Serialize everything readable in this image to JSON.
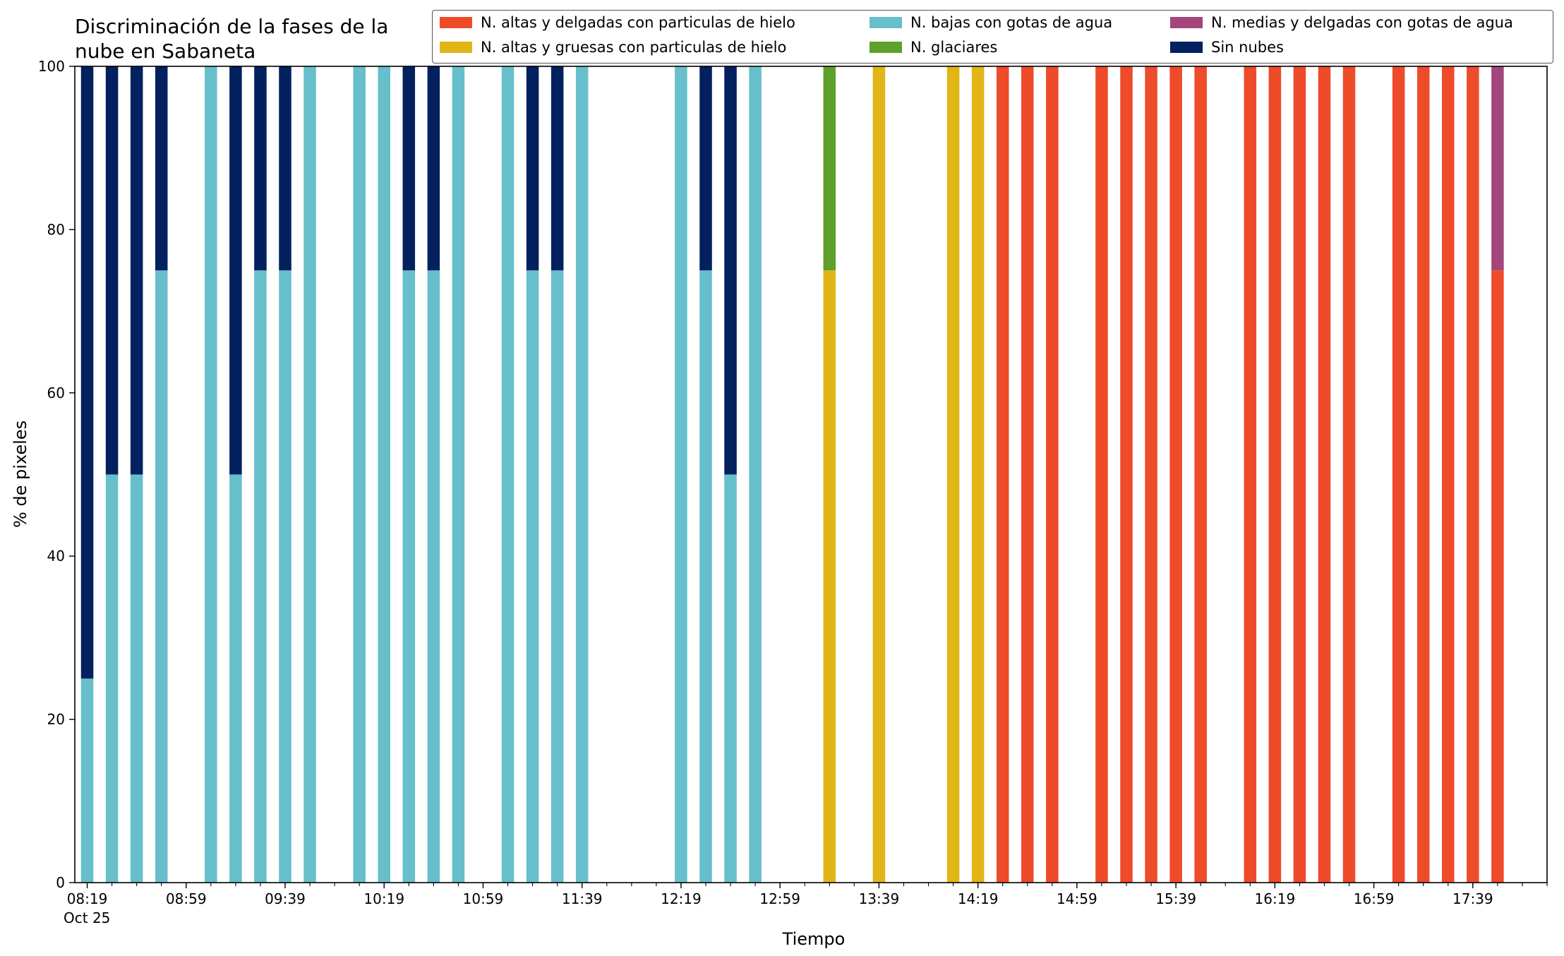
{
  "chart_data": {
    "type": "bar",
    "stacked": true,
    "title": "Discriminación de la fases de la nube en Sabaneta",
    "title_lines": [
      "Discriminación de la fases de la",
      "nube en Sabaneta"
    ],
    "xlabel": "Tiempo",
    "ylabel": "% de pixeles",
    "ylim": [
      0,
      100
    ],
    "yticks": [
      0,
      20,
      40,
      60,
      80,
      100
    ],
    "xlim": [
      "08:14",
      "18:09"
    ],
    "xtick_values": [
      "08:19",
      "08:59",
      "09:39",
      "10:19",
      "10:59",
      "11:39",
      "12:19",
      "12:59",
      "13:39",
      "14:19",
      "14:59",
      "15:39",
      "16:19",
      "16:59",
      "17:39"
    ],
    "xtick_labels": [
      "08:19",
      "08:59",
      "09:39",
      "10:19",
      "10:59",
      "11:39",
      "12:19",
      "12:59",
      "13:39",
      "14:19",
      "14:59",
      "15:39",
      "16:19",
      "16:59",
      "17:39"
    ],
    "x_date_label": "Oct 25",
    "minor_tick_interval_minutes": 10,
    "bar_width_minutes": 5,
    "grid": false,
    "legend_position": "top-right",
    "legend_columns": 3,
    "series": [
      {
        "key": "altas_delgadas",
        "name": "N. altas y delgadas con particulas de hielo",
        "color": "#ee4b2b"
      },
      {
        "key": "altas_gruesas",
        "name": "N. altas y gruesas con particulas de hielo",
        "color": "#e1b516"
      },
      {
        "key": "bajas",
        "name": "N. bajas con gotas de agua",
        "color": "#67bfcb"
      },
      {
        "key": "glaciares",
        "name": "N. glaciares",
        "color": "#5ea02c"
      },
      {
        "key": "medias",
        "name": "N. medias y delgadas con gotas de agua",
        "color": "#a3467c"
      },
      {
        "key": "sin_nubes",
        "name": "Sin nubes",
        "color": "#03205f"
      }
    ],
    "stack_order": [
      "altas_delgadas",
      "altas_gruesas",
      "bajas",
      "glaciares",
      "medias",
      "sin_nubes"
    ],
    "x": [
      "08:19",
      "08:29",
      "08:39",
      "08:49",
      "09:09",
      "09:19",
      "09:29",
      "09:39",
      "09:49",
      "10:09",
      "10:19",
      "10:29",
      "10:39",
      "10:49",
      "11:09",
      "11:19",
      "11:29",
      "11:39",
      "12:19",
      "12:29",
      "12:39",
      "12:49",
      "13:19",
      "13:39",
      "14:09",
      "14:19",
      "14:29",
      "14:39",
      "14:49",
      "15:09",
      "15:19",
      "15:29",
      "15:39",
      "15:49",
      "16:09",
      "16:19",
      "16:29",
      "16:39",
      "16:49",
      "17:09",
      "17:19",
      "17:29",
      "17:39",
      "17:49"
    ],
    "values": {
      "altas_delgadas": [
        0,
        0,
        0,
        0,
        0,
        0,
        0,
        0,
        0,
        0,
        0,
        0,
        0,
        0,
        0,
        0,
        0,
        0,
        0,
        0,
        0,
        0,
        0,
        0,
        0,
        0,
        100,
        100,
        100,
        100,
        100,
        100,
        100,
        100,
        100,
        100,
        100,
        100,
        100,
        100,
        100,
        100,
        100,
        75
      ],
      "altas_gruesas": [
        0,
        0,
        0,
        0,
        0,
        0,
        0,
        0,
        0,
        0,
        0,
        0,
        0,
        0,
        0,
        0,
        0,
        0,
        0,
        0,
        0,
        0,
        75,
        100,
        100,
        100,
        0,
        0,
        0,
        0,
        0,
        0,
        0,
        0,
        0,
        0,
        0,
        0,
        0,
        0,
        0,
        0,
        0,
        0
      ],
      "bajas": [
        25,
        50,
        50,
        75,
        100,
        50,
        75,
        75,
        100,
        100,
        100,
        75,
        75,
        100,
        100,
        75,
        75,
        100,
        100,
        75,
        50,
        100,
        0,
        0,
        0,
        0,
        0,
        0,
        0,
        0,
        0,
        0,
        0,
        0,
        0,
        0,
        0,
        0,
        0,
        0,
        0,
        0,
        0,
        0
      ],
      "glaciares": [
        0,
        0,
        0,
        0,
        0,
        0,
        0,
        0,
        0,
        0,
        0,
        0,
        0,
        0,
        0,
        0,
        0,
        0,
        0,
        0,
        0,
        0,
        25,
        0,
        0,
        0,
        0,
        0,
        0,
        0,
        0,
        0,
        0,
        0,
        0,
        0,
        0,
        0,
        0,
        0,
        0,
        0,
        0,
        0
      ],
      "medias": [
        0,
        0,
        0,
        0,
        0,
        0,
        0,
        0,
        0,
        0,
        0,
        0,
        0,
        0,
        0,
        0,
        0,
        0,
        0,
        0,
        0,
        0,
        0,
        0,
        0,
        0,
        0,
        0,
        0,
        0,
        0,
        0,
        0,
        0,
        0,
        0,
        0,
        0,
        0,
        0,
        0,
        0,
        0,
        25
      ],
      "sin_nubes": [
        75,
        50,
        50,
        25,
        0,
        50,
        25,
        25,
        0,
        0,
        0,
        25,
        25,
        0,
        0,
        25,
        25,
        0,
        0,
        25,
        50,
        0,
        0,
        0,
        0,
        0,
        0,
        0,
        0,
        0,
        0,
        0,
        0,
        0,
        0,
        0,
        0,
        0,
        0,
        0,
        0,
        0,
        0,
        0
      ]
    }
  }
}
